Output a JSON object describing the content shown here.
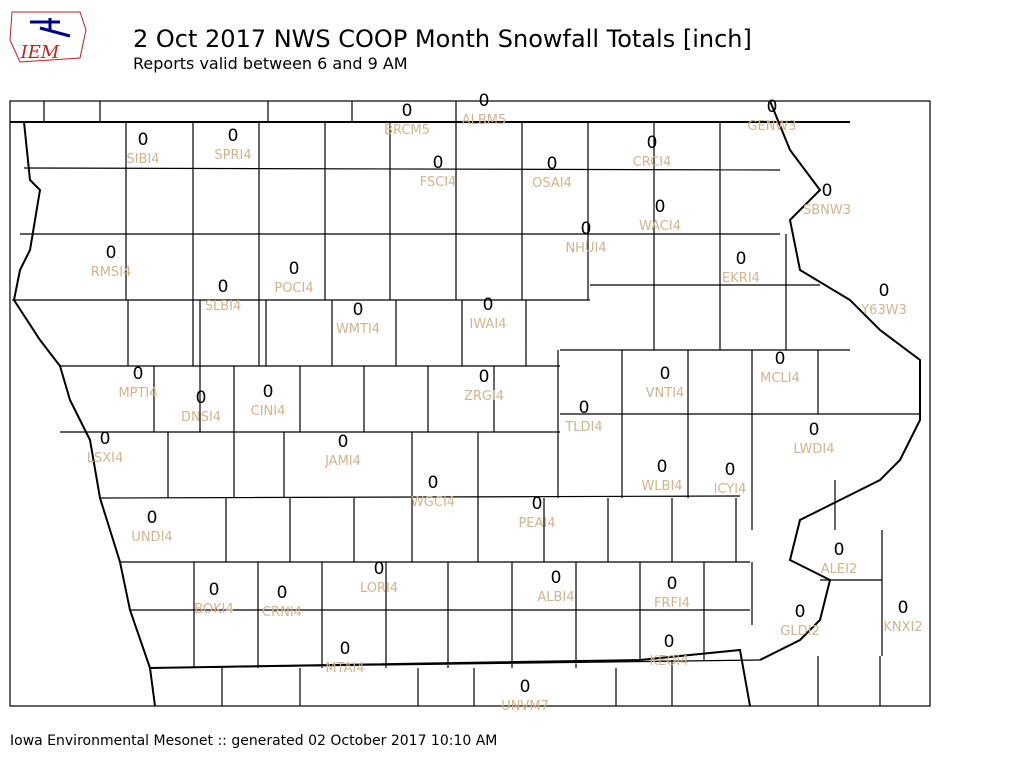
{
  "logo": "IEM",
  "header": {
    "title": "2 Oct 2017 NWS COOP Month Snowfall Totals [inch]",
    "subtitle": "Reports valid between 6 and 9 AM"
  },
  "stations": [
    {
      "id": "BRCM5",
      "value": 0
    },
    {
      "id": "ALBM5",
      "value": 0
    },
    {
      "id": "GENW3",
      "value": 0
    },
    {
      "id": "SIBI4",
      "value": 0
    },
    {
      "id": "SPRI4",
      "value": 0
    },
    {
      "id": "FSCI4",
      "value": 0
    },
    {
      "id": "OSAI4",
      "value": 0
    },
    {
      "id": "CRCI4",
      "value": 0
    },
    {
      "id": "SBNW3",
      "value": 0
    },
    {
      "id": "WACI4",
      "value": 0
    },
    {
      "id": "NHUI4",
      "value": 0
    },
    {
      "id": "RMSI4",
      "value": 0
    },
    {
      "id": "EKRI4",
      "value": 0
    },
    {
      "id": "POCI4",
      "value": 0
    },
    {
      "id": "SLBI4",
      "value": 0
    },
    {
      "id": "Y63W3",
      "value": 0
    },
    {
      "id": "WMTI4",
      "value": 0
    },
    {
      "id": "IWAI4",
      "value": 0
    },
    {
      "id": "MPTI4",
      "value": 0
    },
    {
      "id": "MCLI4",
      "value": 0
    },
    {
      "id": "VNTI4",
      "value": 0
    },
    {
      "id": "ZRGI4",
      "value": 0
    },
    {
      "id": "DNSI4",
      "value": 0
    },
    {
      "id": "CINI4",
      "value": 0
    },
    {
      "id": "TLDI4",
      "value": 0
    },
    {
      "id": "LWDI4",
      "value": 0
    },
    {
      "id": "LSXI4",
      "value": 0
    },
    {
      "id": "JAMI4",
      "value": 0
    },
    {
      "id": "WLBI4",
      "value": 0
    },
    {
      "id": "ICYI4",
      "value": 0
    },
    {
      "id": "WGCI4",
      "value": 0
    },
    {
      "id": "PEAI4",
      "value": 0
    },
    {
      "id": "UNDI4",
      "value": 0
    },
    {
      "id": "ALEI2",
      "value": 0
    },
    {
      "id": "LORI4",
      "value": 0
    },
    {
      "id": "ALBI4",
      "value": 0
    },
    {
      "id": "FRFI4",
      "value": 0
    },
    {
      "id": "BOKI4",
      "value": 0
    },
    {
      "id": "CRNI4",
      "value": 0
    },
    {
      "id": "GLDI2",
      "value": 0
    },
    {
      "id": "KNXI2",
      "value": 0
    },
    {
      "id": "KEOI4",
      "value": 0
    },
    {
      "id": "MTAI4",
      "value": 0
    },
    {
      "id": "UNVM7",
      "value": 0
    }
  ],
  "footer": "Iowa Environmental Mesonet :: generated 02 October 2017 10:10 AM"
}
